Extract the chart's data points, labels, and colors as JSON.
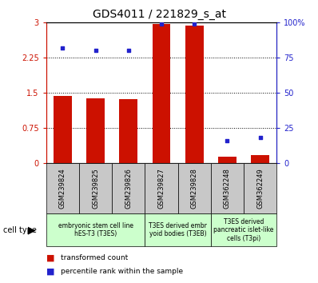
{
  "title": "GDS4011 / 221829_s_at",
  "samples": [
    "GSM239824",
    "GSM239825",
    "GSM239826",
    "GSM239827",
    "GSM239828",
    "GSM362248",
    "GSM362249"
  ],
  "transformed_count": [
    1.43,
    1.38,
    1.36,
    2.97,
    2.93,
    0.13,
    0.17
  ],
  "percentile_rank": [
    82,
    80,
    80,
    99,
    99,
    16,
    18
  ],
  "ylim_left": [
    0,
    3
  ],
  "ylim_right": [
    0,
    100
  ],
  "yticks_left": [
    0,
    0.75,
    1.5,
    2.25,
    3
  ],
  "yticks_right": [
    0,
    25,
    50,
    75,
    100
  ],
  "bar_color": "#cc1100",
  "dot_color": "#2222cc",
  "groups": [
    {
      "label": "embryonic stem cell line\nhES-T3 (T3ES)",
      "spans": [
        0,
        3
      ]
    },
    {
      "label": "T3ES derived embr\nyoid bodies (T3EB)",
      "spans": [
        3,
        5
      ]
    },
    {
      "label": "T3ES derived\npancreatic islet-like\ncells (T3pi)",
      "spans": [
        5,
        7
      ]
    }
  ],
  "group_color": "#ccffcc",
  "legend_items": [
    {
      "label": "transformed count",
      "color": "#cc1100"
    },
    {
      "label": "percentile rank within the sample",
      "color": "#2222cc"
    }
  ],
  "cell_type_label": "cell type",
  "title_fontsize": 10,
  "tick_fontsize": 7,
  "label_fontsize": 7,
  "bar_width": 0.55
}
